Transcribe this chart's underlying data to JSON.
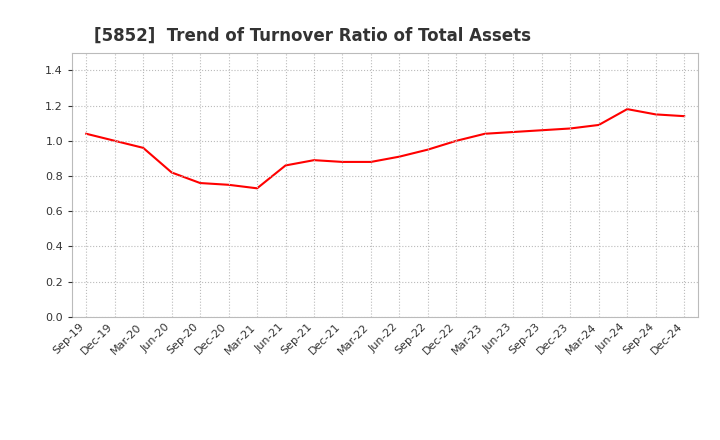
{
  "title": "[5852]  Trend of Turnover Ratio of Total Assets",
  "labels": [
    "Sep-19",
    "Dec-19",
    "Mar-20",
    "Jun-20",
    "Sep-20",
    "Dec-20",
    "Mar-21",
    "Jun-21",
    "Sep-21",
    "Dec-21",
    "Mar-22",
    "Jun-22",
    "Sep-22",
    "Dec-22",
    "Mar-23",
    "Jun-23",
    "Sep-23",
    "Dec-23",
    "Mar-24",
    "Jun-24",
    "Sep-24",
    "Dec-24"
  ],
  "values": [
    1.04,
    1.0,
    0.96,
    0.82,
    0.76,
    0.75,
    0.73,
    0.86,
    0.89,
    0.88,
    0.88,
    0.91,
    0.95,
    1.0,
    1.04,
    1.05,
    1.06,
    1.07,
    1.09,
    1.18,
    1.15,
    1.14
  ],
  "line_color": "#ff0000",
  "line_width": 1.5,
  "ylim": [
    0.0,
    1.5
  ],
  "yticks": [
    0.0,
    0.2,
    0.4,
    0.6,
    0.8,
    1.0,
    1.2,
    1.4
  ],
  "grid_color": "#bbbbbb",
  "grid_style": "dotted",
  "background_color": "#ffffff",
  "plot_bg_color": "#ffffff",
  "title_fontsize": 12,
  "title_color": "#333333",
  "tick_fontsize": 8,
  "tick_color": "#333333"
}
